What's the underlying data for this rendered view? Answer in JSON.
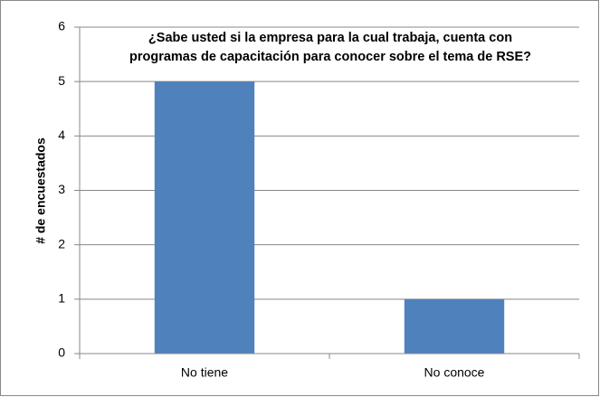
{
  "chart_data": {
    "type": "bar",
    "title": [
      "¿Sabe usted si la empresa para la cual trabaja, cuenta con",
      "programas  de capacitación para conocer sobre el tema de RSE?"
    ],
    "y_label": "# de encuestados",
    "categories": [
      "No tiene",
      "No conoce"
    ],
    "values": [
      5,
      1
    ],
    "color": "#4f81bd",
    "ylim": [
      0,
      6
    ],
    "yticks": [
      0,
      1,
      2,
      3,
      4,
      5,
      6
    ],
    "grid": true
  }
}
